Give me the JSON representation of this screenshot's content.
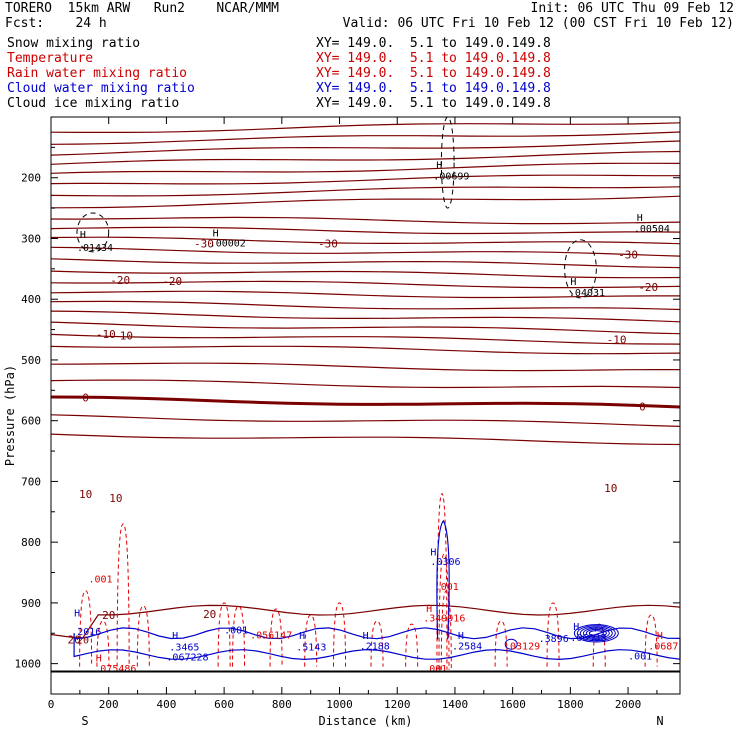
{
  "header": {
    "line1_left": "TORERO  15km ARW   Run2    NCAR/MMM",
    "line1_right": "Init: 06 UTC Thu 09 Feb 12",
    "line2_left": "Fcst:    24 h",
    "line2_right": "Valid: 06 UTC Fri 10 Feb 12 (00 CST Fri 10 Feb 12)"
  },
  "fields": [
    {
      "name": "Snow mixing ratio",
      "xy": "XY= 149.0.  5.1 to 149.0.149.8",
      "color": "#000000"
    },
    {
      "name": "Temperature",
      "xy": "XY= 149.0.  5.1 to 149.0.149.8",
      "color": "#cc0000"
    },
    {
      "name": "Rain water mixing ratio",
      "xy": "XY= 149.0.  5.1 to 149.0.149.8",
      "color": "#cc0000"
    },
    {
      "name": "Cloud water mixing ratio",
      "xy": "XY= 149.0.  5.1 to 149.0.149.8",
      "color": "#0000cc"
    },
    {
      "name": "Cloud ice mixing ratio",
      "xy": "XY= 149.0.  5.1 to 149.0.149.8",
      "color": "#000000"
    }
  ],
  "chart_data": {
    "type": "cross-section contour",
    "xlabel": "Distance (km)",
    "ylabel": "Pressure (hPa)",
    "xlim": [
      0,
      2180
    ],
    "ylim": [
      1050,
      100
    ],
    "x_ticks": [
      0,
      200,
      400,
      600,
      800,
      1000,
      1200,
      1400,
      1600,
      1800,
      2000
    ],
    "y_ticks": [
      200,
      300,
      400,
      500,
      600,
      700,
      800,
      900,
      1000
    ],
    "end_labels": {
      "left": "S",
      "right": "N"
    },
    "colors": {
      "temperature": "#7a0000",
      "rain": "#e00000",
      "cloud_water": "#0000cc",
      "black": "#000000"
    },
    "temperature_contours": [
      {
        "label": "-30",
        "at": [
          [
            530,
            308
          ],
          [
            960,
            308
          ],
          [
            2000,
            326
          ]
        ]
      },
      {
        "label": "-20",
        "at": [
          [
            240,
            368
          ],
          [
            420,
            370
          ],
          [
            2070,
            380
          ]
        ]
      },
      {
        "label": "-10",
        "at": [
          [
            190,
            457
          ],
          [
            250,
            460
          ],
          [
            1960,
            466
          ]
        ]
      },
      {
        "label": "0",
        "at": [
          [
            120,
            562
          ],
          [
            2050,
            577
          ]
        ]
      },
      {
        "label": "10",
        "at": [
          [
            120,
            721
          ],
          [
            225,
            727
          ],
          [
            1940,
            711
          ]
        ]
      },
      {
        "label": "20",
        "at": [
          [
            80,
            960
          ],
          [
            200,
            920
          ],
          [
            550,
            918
          ]
        ]
      }
    ],
    "annotations": [
      {
        "text": "H",
        "x": 100,
        "y": 293,
        "color": "#000000"
      },
      {
        "text": ".01434",
        "x": 90,
        "y": 314,
        "color": "#000000"
      },
      {
        "text": "H",
        "x": 560,
        "y": 290,
        "color": "#000000"
      },
      {
        "text": ".00002",
        "x": 550,
        "y": 307,
        "color": "#000000"
      },
      {
        "text": "H",
        "x": 1335,
        "y": 178,
        "color": "#000000"
      },
      {
        "text": ".00699",
        "x": 1325,
        "y": 196,
        "color": "#000000"
      },
      {
        "text": "H",
        "x": 2030,
        "y": 265,
        "color": "#000000"
      },
      {
        "text": ".00504",
        "x": 2020,
        "y": 283,
        "color": "#000000"
      },
      {
        "text": "H",
        "x": 1800,
        "y": 370,
        "color": "#000000"
      },
      {
        "text": ".04031",
        "x": 1795,
        "y": 388,
        "color": "#000000"
      },
      {
        "text": "H",
        "x": 1315,
        "y": 815,
        "color": "#0000cc"
      },
      {
        "text": ".0306",
        "x": 1315,
        "y": 831,
        "color": "#0000cc"
      },
      {
        "text": ".001",
        "x": 130,
        "y": 860,
        "color": "#e00000"
      },
      {
        "text": ".001",
        "x": 1330,
        "y": 872,
        "color": "#e00000"
      },
      {
        "text": "H",
        "x": 1300,
        "y": 908,
        "color": "#e00000"
      },
      {
        "text": ".349916",
        "x": 1290,
        "y": 924,
        "color": "#e00000"
      },
      {
        "text": "H",
        "x": 80,
        "y": 916,
        "color": "#0000cc"
      },
      {
        "text": ".2016",
        "x": 70,
        "y": 946,
        "color": "#0000cc"
      },
      {
        "text": "20",
        "x": 90,
        "y": 960,
        "color": "#7a0000"
      },
      {
        "text": ".001",
        "x": 600,
        "y": 944,
        "color": "#0000cc"
      },
      {
        "text": ".056147",
        "x": 690,
        "y": 952,
        "color": "#e00000"
      },
      {
        "text": "H",
        "x": 420,
        "y": 953,
        "color": "#0000cc"
      },
      {
        "text": ".3465",
        "x": 410,
        "y": 972,
        "color": "#0000cc"
      },
      {
        "text": ".067228",
        "x": 400,
        "y": 988,
        "color": "#0000cc"
      },
      {
        "text": "H",
        "x": 860,
        "y": 953,
        "color": "#0000cc"
      },
      {
        "text": ".5143",
        "x": 850,
        "y": 972,
        "color": "#0000cc"
      },
      {
        "text": "H",
        "x": 1080,
        "y": 953,
        "color": "#0000cc"
      },
      {
        "text": ".2188",
        "x": 1070,
        "y": 970,
        "color": "#0000cc"
      },
      {
        "text": "H",
        "x": 1410,
        "y": 953,
        "color": "#0000cc"
      },
      {
        "text": ".2584",
        "x": 1390,
        "y": 970,
        "color": "#0000cc"
      },
      {
        "text": ".03129",
        "x": 1570,
        "y": 970,
        "color": "#e00000"
      },
      {
        "text": "H",
        "x": 1810,
        "y": 938,
        "color": "#0000cc"
      },
      {
        "text": ".3896",
        "x": 1690,
        "y": 958,
        "color": "#0000cc"
      },
      {
        "text": ".06938",
        "x": 1800,
        "y": 956,
        "color": "#0000cc"
      },
      {
        "text": "H",
        "x": 2100,
        "y": 953,
        "color": "#e00000"
      },
      {
        "text": ".0687",
        "x": 2070,
        "y": 970,
        "color": "#e00000"
      },
      {
        "text": ".001",
        "x": 2000,
        "y": 987,
        "color": "#0000cc"
      },
      {
        "text": "H",
        "x": 155,
        "y": 990,
        "color": "#e00000"
      },
      {
        "text": ".075486",
        "x": 150,
        "y": 1007,
        "color": "#e00000"
      },
      {
        "text": ".001",
        "x": 1290,
        "y": 1007,
        "color": "#e00000"
      }
    ]
  }
}
